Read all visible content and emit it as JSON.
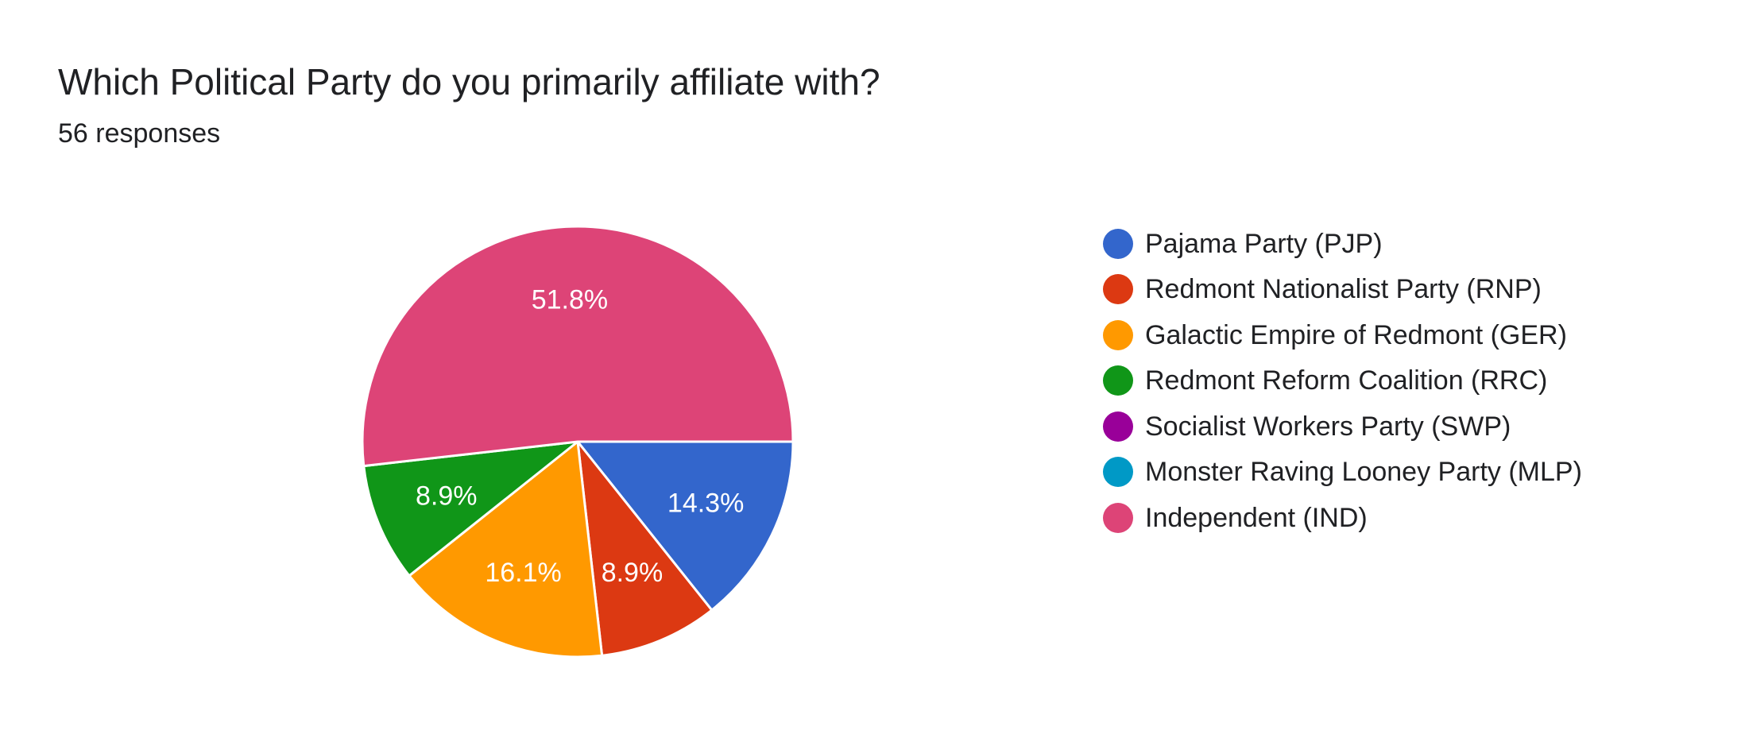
{
  "question": {
    "title": "Which Political Party do you primarily affiliate with?",
    "responses": "56 responses"
  },
  "chart_data": {
    "type": "pie",
    "title": "Which Political Party do you primarily affiliate with?",
    "total_responses": 56,
    "legend_position": "right",
    "slices": [
      {
        "label": "Pajama Party (PJP)",
        "value": 14.3,
        "display": "14.3%",
        "color": "#3366cc"
      },
      {
        "label": "Redmont Nationalist Party (RNP)",
        "value": 8.9,
        "display": "8.9%",
        "color": "#dc3912"
      },
      {
        "label": "Galactic Empire of Redmont (GER)",
        "value": 16.1,
        "display": "16.1%",
        "color": "#ff9900"
      },
      {
        "label": "Redmont Reform Coalition (RRC)",
        "value": 8.9,
        "display": "8.9%",
        "color": "#109618"
      },
      {
        "label": "Socialist Workers Party (SWP)",
        "value": 0,
        "display": "",
        "color": "#990099"
      },
      {
        "label": "Monster Raving Looney Party (MLP)",
        "value": 0,
        "display": "",
        "color": "#0099c6"
      },
      {
        "label": "Independent (IND)",
        "value": 51.8,
        "display": "51.8%",
        "color": "#dd4477"
      }
    ]
  }
}
